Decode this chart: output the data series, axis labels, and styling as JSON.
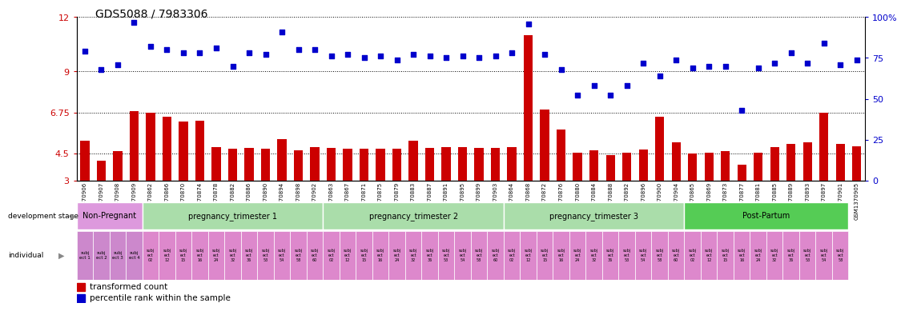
{
  "title": "GDS5088 / 7983306",
  "samples": [
    "GSM1370906",
    "GSM1370907",
    "GSM1370908",
    "GSM1370909",
    "GSM1370862",
    "GSM1370866",
    "GSM1370870",
    "GSM1370874",
    "GSM1370878",
    "GSM1370882",
    "GSM1370886",
    "GSM1370890",
    "GSM1370894",
    "GSM1370898",
    "GSM1370902",
    "GSM1370863",
    "GSM1370867",
    "GSM1370871",
    "GSM1370875",
    "GSM1370879",
    "GSM1370883",
    "GSM1370887",
    "GSM1370891",
    "GSM1370895",
    "GSM1370899",
    "GSM1370903",
    "GSM1370864",
    "GSM1370868",
    "GSM1370872",
    "GSM1370876",
    "GSM1370880",
    "GSM1370884",
    "GSM1370888",
    "GSM1370892",
    "GSM1370896",
    "GSM1370900",
    "GSM1370904",
    "GSM1370865",
    "GSM1370869",
    "GSM1370873",
    "GSM1370877",
    "GSM1370881",
    "GSM1370885",
    "GSM1370889",
    "GSM1370893",
    "GSM1370897",
    "GSM1370901",
    "GSM1370905"
  ],
  "bar_values": [
    5.2,
    4.1,
    4.6,
    6.8,
    6.75,
    6.5,
    6.25,
    6.3,
    4.85,
    4.75,
    4.8,
    4.75,
    5.3,
    4.65,
    4.85,
    4.8,
    4.75,
    4.75,
    4.75,
    4.75,
    5.2,
    4.8,
    4.85,
    4.85,
    4.8,
    4.8,
    4.85,
    11.0,
    6.9,
    5.8,
    4.55,
    4.65,
    4.4,
    4.55,
    4.7,
    6.5,
    5.1,
    4.5,
    4.55,
    4.6,
    3.85,
    4.55,
    4.85,
    5.0,
    5.1,
    6.75,
    5.0,
    4.9
  ],
  "dot_values": [
    79,
    68,
    71,
    97,
    82,
    80,
    78,
    78,
    81,
    70,
    78,
    77,
    91,
    80,
    80,
    76,
    77,
    75,
    76,
    74,
    77,
    76,
    75,
    76,
    75,
    76,
    78,
    96,
    77,
    68,
    52,
    58,
    52,
    58,
    72,
    64,
    74,
    69,
    70,
    70,
    43,
    69,
    72,
    78,
    72,
    84,
    71,
    74
  ],
  "bar_color": "#cc0000",
  "dot_color": "#0000cc",
  "left_yticks": [
    3,
    4.5,
    6.75,
    9,
    12
  ],
  "right_yticks": [
    0,
    25,
    50,
    75,
    100
  ],
  "left_ylim": [
    3,
    12
  ],
  "right_ylim": [
    0,
    100
  ],
  "left_ytick_labels": [
    "3",
    "4.5",
    "6.75",
    "9",
    "12"
  ],
  "right_ytick_labels": [
    "0",
    "25",
    "50",
    "75",
    "100%"
  ],
  "stages": [
    {
      "label": "Non-Pregnant",
      "start": 0,
      "end": 4,
      "color": "#dd99dd"
    },
    {
      "label": "pregnancy_trimester 1",
      "start": 4,
      "end": 15,
      "color": "#aaddaa"
    },
    {
      "label": "pregnancy_trimester 2",
      "start": 15,
      "end": 26,
      "color": "#aaddaa"
    },
    {
      "label": "pregnancy_trimester 3",
      "start": 26,
      "end": 37,
      "color": "#aaddaa"
    },
    {
      "label": "Post-Partum",
      "start": 37,
      "end": 47,
      "color": "#55cc55"
    }
  ],
  "nonpreg_labels": [
    "subj\nect 1",
    "subj\nect 2",
    "subj\nect 3",
    "subj\nect 4"
  ],
  "rep_labels": [
    "subj\nect\n02",
    "subj\nect\n12",
    "subj\nect\n15",
    "subj\nect\n16",
    "subj\nect\n24",
    "subj\nect\n32",
    "subj\nect\n36",
    "subj\nect\n53",
    "subj\nect\n54",
    "subj\nect\n58",
    "subj\nect\n60"
  ],
  "postpartum_labels": [
    "subj\nect\n02",
    "subj\nect\n12",
    "subj\nect\n15",
    "subj\nect\n16",
    "subj\nect\n24",
    "subj\nect\n32",
    "subj\nect\n36",
    "subj\nect\n53",
    "subj\nect\n54",
    "subj\nect\n58"
  ],
  "bg_color": "#ffffff",
  "left_label_color": "#cc0000",
  "right_label_color": "#0000cc",
  "indiv_color": "#dd88cc",
  "nonpreg_color": "#cc88cc"
}
